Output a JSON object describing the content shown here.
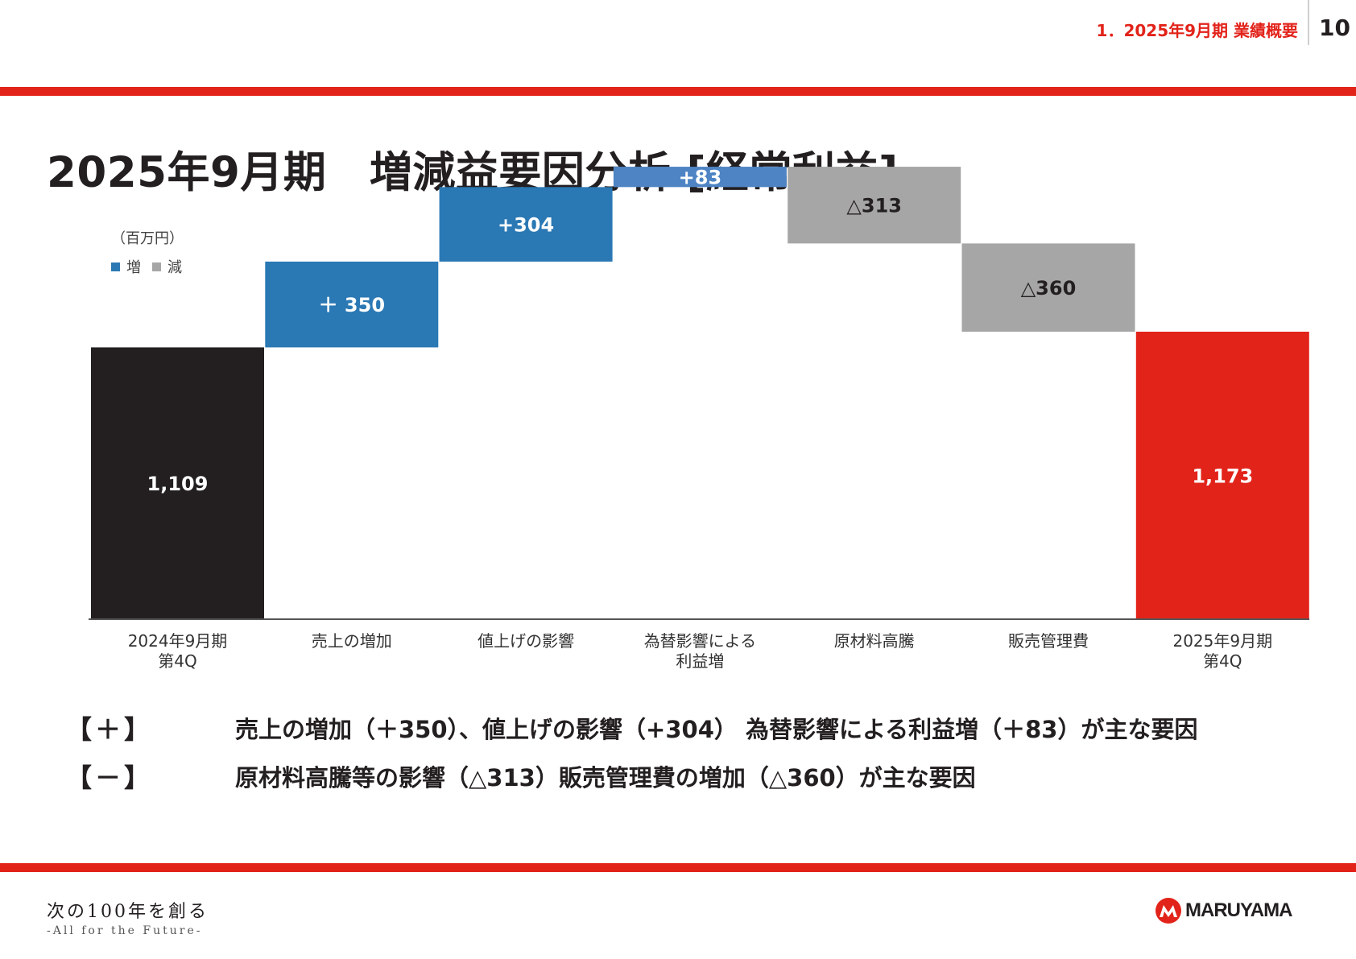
{
  "header": {
    "section": "1．2025年9月期 業績概要",
    "page_number": "10"
  },
  "page_title": "2025年9月期　増減益要因分析 [経常利益]",
  "legend": {
    "unit": "（百万円）",
    "increase_label": "増",
    "decrease_label": "減"
  },
  "chart_data": {
    "type": "bar",
    "subtype": "waterfall",
    "unit": "百万円",
    "categories": [
      [
        "2024年9月期",
        "第4Q"
      ],
      [
        "売上の増加"
      ],
      [
        "値上げの影響"
      ],
      [
        "為替影響による",
        "利益増"
      ],
      [
        "原材料高騰"
      ],
      [
        "販売管理費"
      ],
      [
        "2025年9月期",
        "第4Q"
      ]
    ],
    "values": [
      1109,
      350,
      304,
      83,
      -313,
      -360,
      1173
    ],
    "kinds": [
      "total",
      "increase",
      "increase",
      "increase",
      "decrease",
      "decrease",
      "total"
    ],
    "data_labels": [
      "1,109",
      "＋ 350",
      "+304",
      "+83",
      "△313",
      "△360",
      "1,173"
    ],
    "colors": {
      "start_total": "#231f20",
      "end_total": "#e2231a",
      "increase": "#2a78b4",
      "increase_small": "#4e84c4",
      "decrease": "#a6a6a6"
    },
    "ylim": [
      0,
      1846
    ],
    "grid": false,
    "legend_position": "top-left"
  },
  "notes": [
    {
      "bracket": "【＋】",
      "text": "売上の増加（＋350）、値上げの影響（+304） 為替影響による利益増（＋83）が主な要因"
    },
    {
      "bracket": "【－】",
      "text": "原材料高騰等の影響（△313）販売管理費の増加（△360）が主な要因"
    }
  ],
  "footer": {
    "slogan_main": "次の100年を創る",
    "slogan_sub": "-All for the Future-",
    "logo_text": "MARUYAMA",
    "logo_icon": "maruyama-m-logo-icon"
  }
}
